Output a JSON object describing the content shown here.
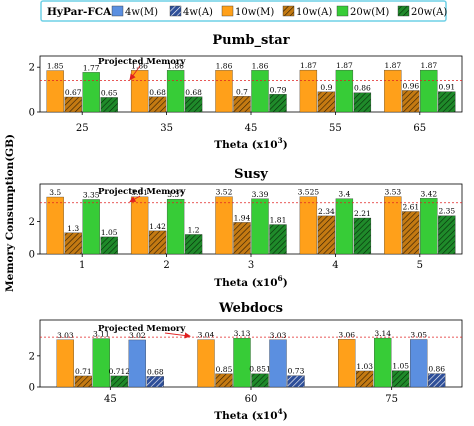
{
  "legend": {
    "title": "HyPar-FCA",
    "placement": "top",
    "items": [
      {
        "key": "4wM",
        "label": "4w(M)",
        "color": "#5b8fe0",
        "hatch": false
      },
      {
        "key": "4wA",
        "label": "4w(A)",
        "color": "#2e4f99",
        "hatch": true
      },
      {
        "key": "10wM",
        "label": "10w(M)",
        "color": "#ffa01a",
        "hatch": false
      },
      {
        "key": "10wA",
        "label": "10w(A)",
        "color": "#c47a12",
        "hatch": true
      },
      {
        "key": "20wM",
        "label": "20w(M)",
        "color": "#37cc37",
        "hatch": false
      },
      {
        "key": "20wA",
        "label": "20w(A)",
        "color": "#1f8a2a",
        "hatch": true
      }
    ]
  },
  "ylabel": "Memory Consumption(GB)",
  "annotation_text": "Projected Memory",
  "projected_line_color": "#e02020",
  "chart_data": [
    {
      "type": "bar",
      "title": "Pumb_star",
      "xlabel_main": "Theta (x10",
      "xlabel_exp": "3",
      "xlabel_tail": ")",
      "categories": [
        "25",
        "35",
        "45",
        "55",
        "65"
      ],
      "ylim": [
        0,
        2.5
      ],
      "yticks": [
        0,
        2
      ],
      "projected_memory": 1.4,
      "grid": false,
      "series": [
        {
          "name": "10w(M)",
          "key": "10wM",
          "values": [
            1.85,
            1.86,
            1.86,
            1.87,
            1.87
          ],
          "labels": [
            "1.85",
            "1.86",
            "1.86",
            "1.87",
            "1.87"
          ]
        },
        {
          "name": "10w(A)",
          "key": "10wA",
          "values": [
            0.67,
            0.68,
            0.7,
            0.9,
            0.96
          ],
          "labels": [
            "0.67",
            "0.68",
            "0.7",
            "0.9",
            "0.96"
          ]
        },
        {
          "name": "20w(M)",
          "key": "20wM",
          "values": [
            1.77,
            1.86,
            1.86,
            1.87,
            1.87
          ],
          "labels": [
            "1.77",
            "1.86",
            "1.86",
            "1.87",
            "1.87"
          ]
        },
        {
          "name": "20w(A)",
          "key": "20wA",
          "values": [
            0.65,
            0.68,
            0.79,
            0.86,
            0.91
          ],
          "labels": [
            "0.65",
            "0.68",
            "0.79",
            "0.86",
            "0.91"
          ]
        }
      ]
    },
    {
      "type": "bar",
      "title": "Susy",
      "xlabel_main": "Theta (x10",
      "xlabel_exp": "6",
      "xlabel_tail": ")",
      "categories": [
        "1",
        "2",
        "3",
        "4",
        "5"
      ],
      "ylim": [
        0,
        4.3
      ],
      "yticks": [
        0,
        2
      ],
      "projected_memory": 3.15,
      "grid": false,
      "series": [
        {
          "name": "10w(M)",
          "key": "10wM",
          "values": [
            3.5,
            3.51,
            3.52,
            3.525,
            3.53
          ],
          "labels": [
            "3.5",
            "3.51",
            "3.52",
            "3.525",
            "3.53"
          ]
        },
        {
          "name": "10w(A)",
          "key": "10wA",
          "values": [
            1.3,
            1.42,
            1.94,
            2.34,
            2.61
          ],
          "labels": [
            "1.3",
            "1.42",
            "1.94",
            "2.34",
            "2.61"
          ]
        },
        {
          "name": "20w(M)",
          "key": "20wM",
          "values": [
            3.35,
            3.37,
            3.39,
            3.4,
            3.42
          ],
          "labels": [
            "3.35",
            "3.37",
            "3.39",
            "3.4",
            "3.42"
          ]
        },
        {
          "name": "20w(A)",
          "key": "20wA",
          "values": [
            1.05,
            1.2,
            1.81,
            2.21,
            2.35
          ],
          "labels": [
            "1.05",
            "1.2",
            "1.81",
            "2.21",
            "2.35"
          ]
        }
      ]
    },
    {
      "type": "bar",
      "title": "Webdocs",
      "xlabel_main": "Theta (x10",
      "xlabel_exp": "4",
      "xlabel_tail": ")",
      "categories": [
        "45",
        "60",
        "75"
      ],
      "ylim": [
        0,
        4.3
      ],
      "yticks": [
        0,
        2
      ],
      "projected_memory": 3.2,
      "grid": false,
      "series": [
        {
          "name": "10w(M)",
          "key": "10wM",
          "values": [
            3.03,
            3.04,
            3.06
          ],
          "labels": [
            "3.03",
            "3.04",
            "3.06"
          ]
        },
        {
          "name": "10w(A)",
          "key": "10wA",
          "values": [
            0.71,
            0.85,
            1.03
          ],
          "labels": [
            "0.71",
            "0.85",
            "1.03"
          ]
        },
        {
          "name": "20w(M)",
          "key": "20wM",
          "values": [
            3.11,
            3.13,
            3.14
          ],
          "labels": [
            "3.11",
            "3.13",
            "3.14"
          ]
        },
        {
          "name": "20w(A)",
          "key": "20wA",
          "values": [
            0.712,
            0.851,
            1.05
          ],
          "labels": [
            "0.712",
            "0.851",
            "1.05"
          ]
        },
        {
          "name": "4w(M)",
          "key": "4wM",
          "values": [
            3.02,
            3.03,
            3.05
          ],
          "labels": [
            "3.02",
            "3.03",
            "3.05"
          ]
        },
        {
          "name": "4w(A)",
          "key": "4wA",
          "values": [
            0.68,
            0.73,
            0.86
          ],
          "labels": [
            "0.68",
            "0.73",
            "0.86"
          ]
        }
      ]
    }
  ]
}
